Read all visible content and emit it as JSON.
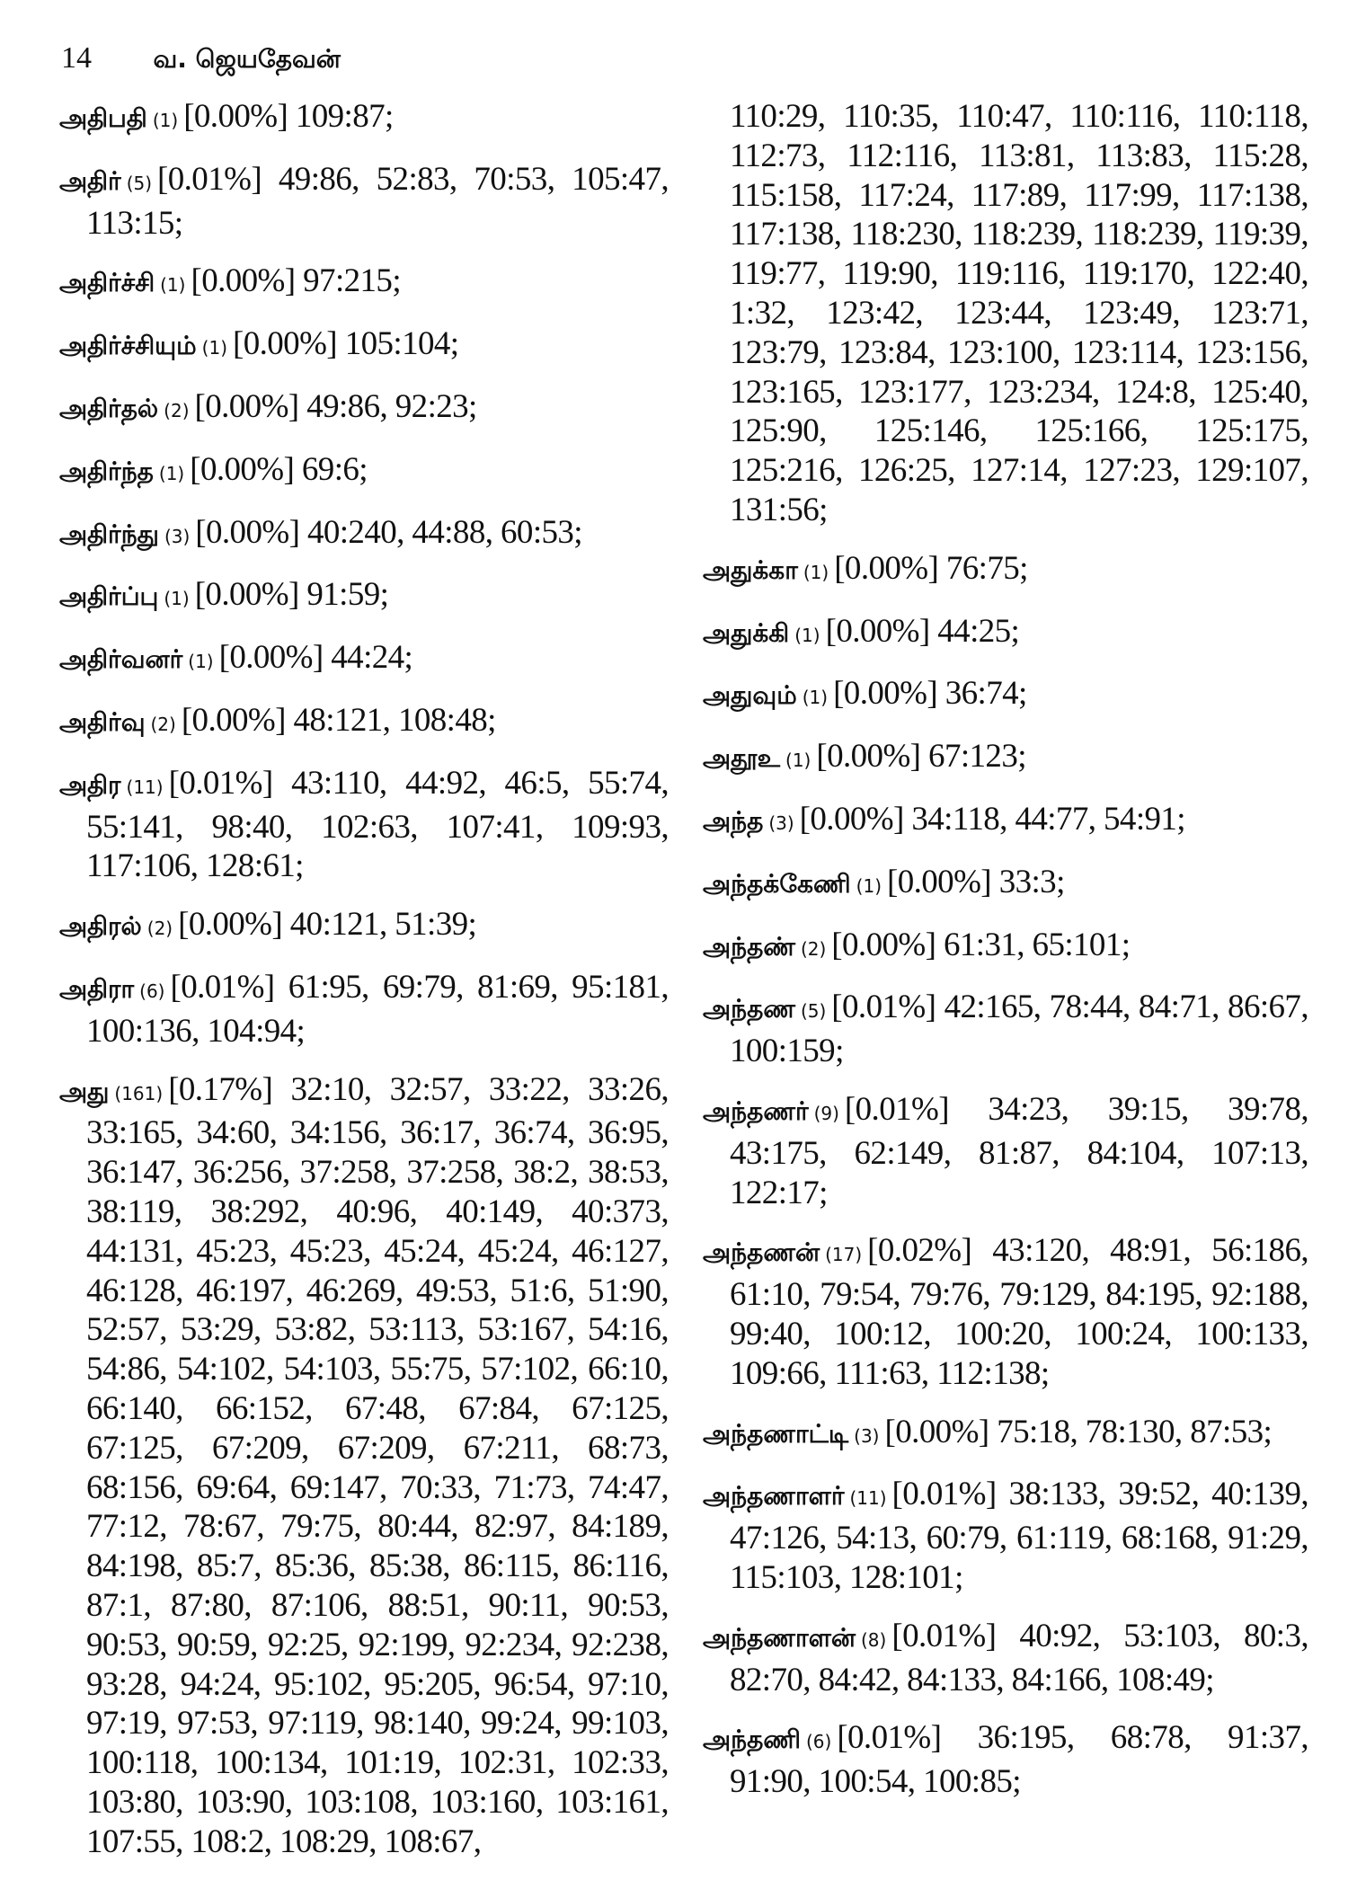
{
  "header": {
    "page_number": "14",
    "author": "வ. ஜெயதேவன்"
  },
  "left_column": [
    {
      "word": "அதிபதி",
      "count": "(1)",
      "percent": "[0.00%]",
      "refs": "109:87;"
    },
    {
      "word": "அதிர்",
      "count": "(5)",
      "percent": "[0.01%]",
      "refs": "49:86, 52:83, 70:53, 105:47, 113:15;"
    },
    {
      "word": "அதிர்ச்சி",
      "count": "(1)",
      "percent": "[0.00%]",
      "refs": "97:215;"
    },
    {
      "word": "அதிர்ச்சியும்",
      "count": "(1)",
      "percent": "[0.00%]",
      "refs": "105:104;"
    },
    {
      "word": "அதிர்தல்",
      "count": "(2)",
      "percent": "[0.00%]",
      "refs": "49:86, 92:23;"
    },
    {
      "word": "அதிர்ந்த",
      "count": "(1)",
      "percent": "[0.00%]",
      "refs": "69:6;"
    },
    {
      "word": "அதிர்ந்து",
      "count": "(3)",
      "percent": "[0.00%]",
      "refs": "40:240, 44:88, 60:53;"
    },
    {
      "word": "அதிர்ப்பு",
      "count": "(1)",
      "percent": "[0.00%]",
      "refs": "91:59;"
    },
    {
      "word": "அதிர்வனர்",
      "count": "(1)",
      "percent": "[0.00%]",
      "refs": "44:24;"
    },
    {
      "word": "அதிர்வு",
      "count": "(2)",
      "percent": "[0.00%]",
      "refs": "48:121, 108:48;"
    },
    {
      "word": "அதிர",
      "count": "(11)",
      "percent": "[0.01%]",
      "refs": "43:110, 44:92, 46:5, 55:74, 55:141, 98:40, 102:63, 107:41, 109:93, 117:106, 128:61;"
    },
    {
      "word": "அதிரல்",
      "count": "(2)",
      "percent": "[0.00%]",
      "refs": "40:121, 51:39;"
    },
    {
      "word": "அதிரா",
      "count": "(6)",
      "percent": "[0.01%]",
      "refs": "61:95, 69:79, 81:69, 95:181, 100:136, 104:94;"
    },
    {
      "word": "அது",
      "count": "(161)",
      "percent": "[0.17%]",
      "refs": "32:10, 32:57, 33:22, 33:26, 33:165, 34:60, 34:156, 36:17, 36:74, 36:95, 36:147, 36:256, 37:258, 37:258, 38:2, 38:53, 38:119, 38:292, 40:96, 40:149, 40:373, 44:131, 45:23, 45:23, 45:24, 45:24, 46:127, 46:128, 46:197, 46:269, 49:53, 51:6, 51:90, 52:57, 53:29, 53:82, 53:113, 53:167, 54:16, 54:86, 54:102, 54:103, 55:75, 57:102, 66:10, 66:140, 66:152, 67:48, 67:84, 67:125, 67:125, 67:209, 67:209, 67:211, 68:73, 68:156, 69:64, 69:147, 70:33, 71:73, 74:47, 77:12, 78:67, 79:75, 80:44, 82:97, 84:189, 84:198, 85:7, 85:36, 85:38, 86:115, 86:116, 87:1, 87:80, 87:106, 88:51, 90:11, 90:53, 90:53, 90:59, 92:25, 92:199, 92:234, 92:238, 93:28, 94:24, 95:102, 95:205, 96:54, 97:10, 97:19, 97:53, 97:119, 98:140, 99:24, 99:103, 100:118, 100:134, 101:19, 102:31, 102:33, 103:80, 103:90, 103:108, 103:160, 103:161, 107:55, 108:2, 108:29, 108:67,"
    }
  ],
  "right_column": {
    "continuation": "110:29, 110:35, 110:47, 110:116, 110:118, 112:73, 112:116, 113:81, 113:83, 115:28, 115:158, 117:24, 117:89, 117:99, 117:138, 117:138, 118:230, 118:239, 118:239, 119:39, 119:77, 119:90, 119:116, 119:170, 122:40, 1:32, 123:42, 123:44, 123:49, 123:71, 123:79, 123:84, 123:100, 123:114, 123:156, 123:165, 123:177, 123:234, 124:8, 125:40, 125:90, 125:146, 125:166, 125:175, 125:216, 126:25, 127:14, 127:23, 129:107, 131:56;",
    "entries": [
      {
        "word": "அதுக்கா",
        "count": "(1)",
        "percent": "[0.00%]",
        "refs": "76:75;"
      },
      {
        "word": "அதுக்கி",
        "count": "(1)",
        "percent": "[0.00%]",
        "refs": "44:25;"
      },
      {
        "word": "அதுவும்",
        "count": "(1)",
        "percent": "[0.00%]",
        "refs": "36:74;"
      },
      {
        "word": "அதூஉ",
        "count": "(1)",
        "percent": "[0.00%]",
        "refs": "67:123;"
      },
      {
        "word": "அந்த",
        "count": "(3)",
        "percent": "[0.00%]",
        "refs": "34:118, 44:77, 54:91;"
      },
      {
        "word": "அந்தக்கேணி",
        "count": "(1)",
        "percent": "[0.00%]",
        "refs": "33:3;"
      },
      {
        "word": "அந்தண்",
        "count": "(2)",
        "percent": "[0.00%]",
        "refs": "61:31, 65:101;"
      },
      {
        "word": "அந்தண",
        "count": "(5)",
        "percent": "[0.01%]",
        "refs": "42:165, 78:44, 84:71, 86:67, 100:159;"
      },
      {
        "word": "அந்தணர்",
        "count": "(9)",
        "percent": "[0.01%]",
        "refs": "34:23, 39:15, 39:78, 43:175, 62:149, 81:87, 84:104, 107:13, 122:17;"
      },
      {
        "word": "அந்தணன்",
        "count": "(17)",
        "percent": "[0.02%]",
        "refs": "43:120, 48:91, 56:186, 61:10, 79:54, 79:76, 79:129, 84:195, 92:188, 99:40, 100:12, 100:20, 100:24, 100:133, 109:66, 111:63, 112:138;"
      },
      {
        "word": "அந்தணாட்டி",
        "count": "(3)",
        "percent": "[0.00%]",
        "refs": "75:18, 78:130, 87:53;"
      },
      {
        "word": "அந்தணாளர்",
        "count": "(11)",
        "percent": "[0.01%]",
        "refs": "38:133, 39:52, 40:139, 47:126, 54:13, 60:79, 61:119, 68:168, 91:29, 115:103, 128:101;"
      },
      {
        "word": "அந்தணாளன்",
        "count": "(8)",
        "percent": "[0.01%]",
        "refs": "40:92, 53:103, 80:3, 82:70, 84:42, 84:133, 84:166, 108:49;"
      },
      {
        "word": "அந்தணி",
        "count": "(6)",
        "percent": "[0.01%]",
        "refs": "36:195, 68:78, 91:37, 91:90, 100:54, 100:85;"
      }
    ]
  }
}
